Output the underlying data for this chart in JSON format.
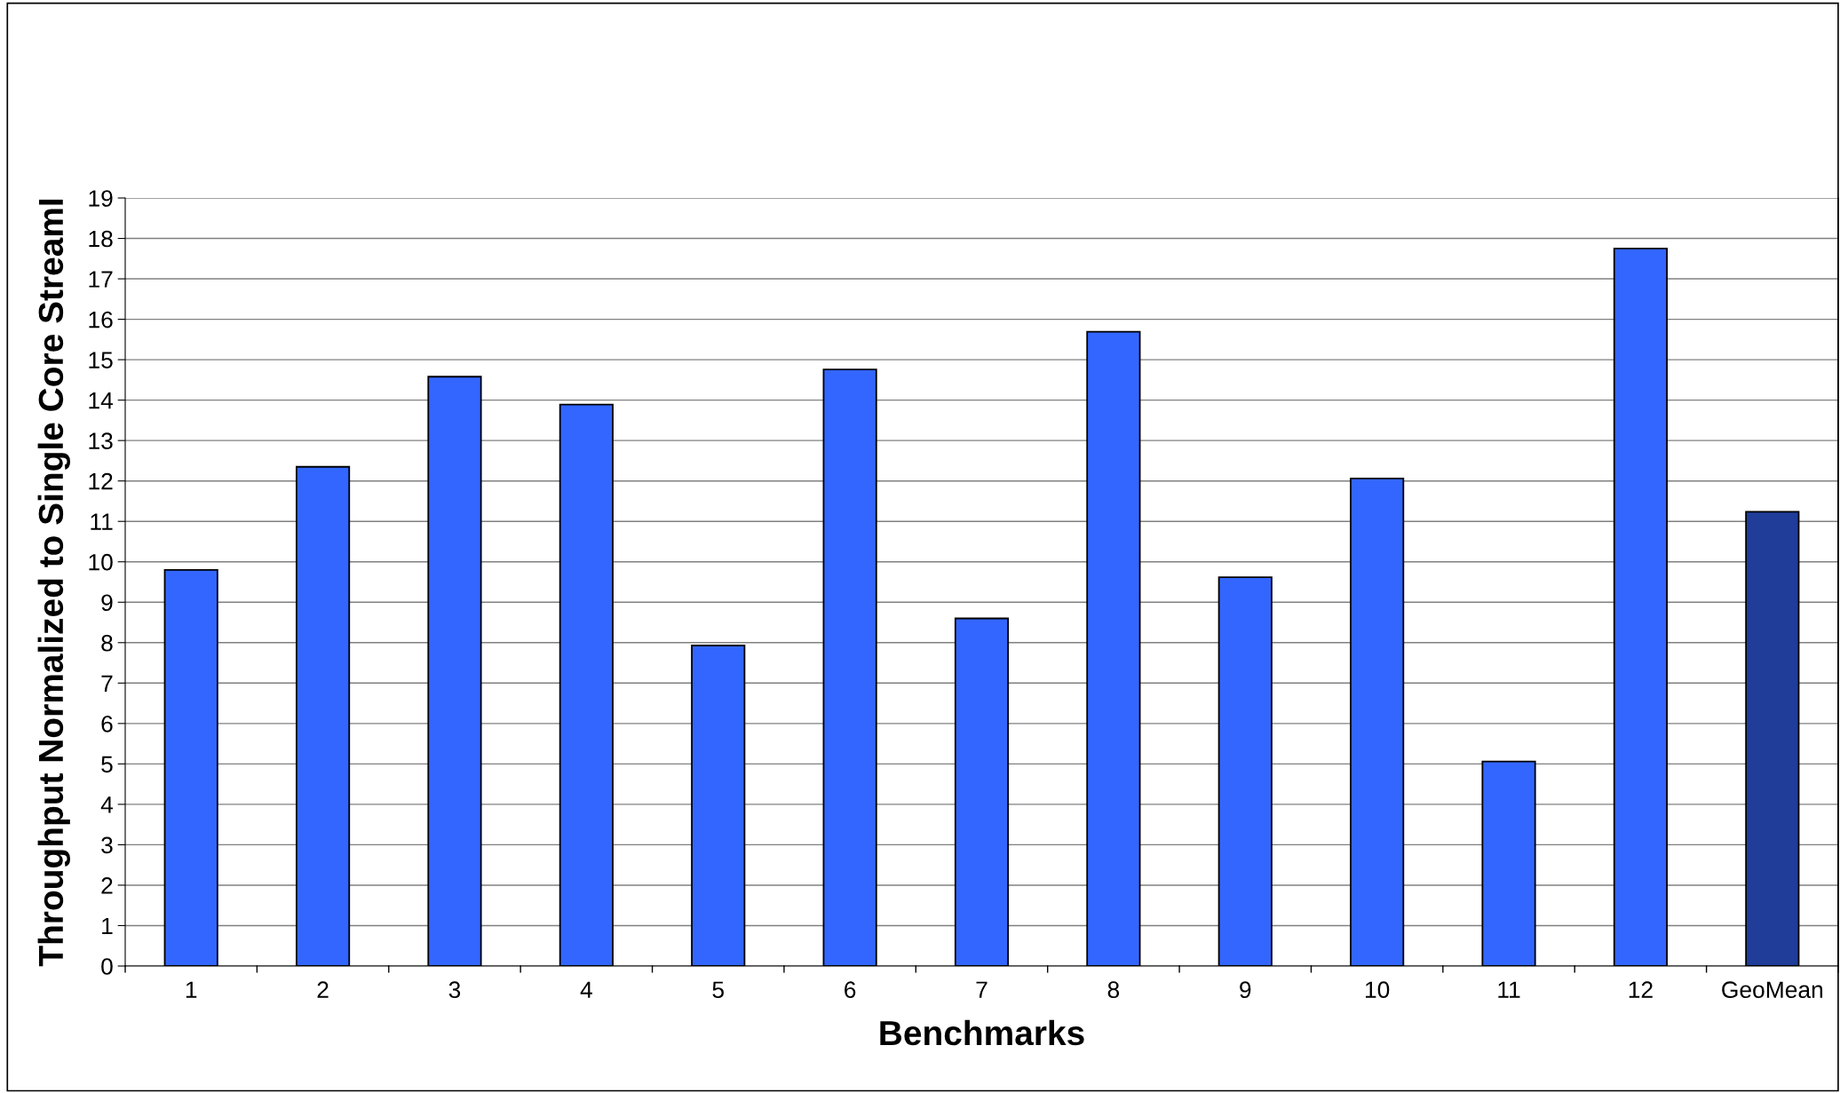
{
  "chart_data": {
    "type": "bar",
    "xlabel": "Benchmarks",
    "ylabel": "Throughput Normalized to Single Core StreamI",
    "categories": [
      "1",
      "2",
      "3",
      "4",
      "5",
      "6",
      "7",
      "8",
      "9",
      "10",
      "11",
      "12",
      "GeoMean"
    ],
    "values": [
      9.8,
      12.35,
      14.58,
      13.89,
      7.93,
      14.76,
      8.6,
      15.69,
      9.62,
      12.06,
      5.06,
      17.75,
      11.24
    ],
    "colors": [
      "#3366ff",
      "#3366ff",
      "#3366ff",
      "#3366ff",
      "#3366ff",
      "#3366ff",
      "#3366ff",
      "#3366ff",
      "#3366ff",
      "#3366ff",
      "#3366ff",
      "#3366ff",
      "#1f3d99"
    ],
    "ylim": [
      0,
      19
    ],
    "yticks": [
      0,
      1,
      2,
      3,
      4,
      5,
      6,
      7,
      8,
      9,
      10,
      11,
      12,
      13,
      14,
      15,
      16,
      17,
      18,
      19
    ],
    "grid": "y",
    "legend": false
  }
}
